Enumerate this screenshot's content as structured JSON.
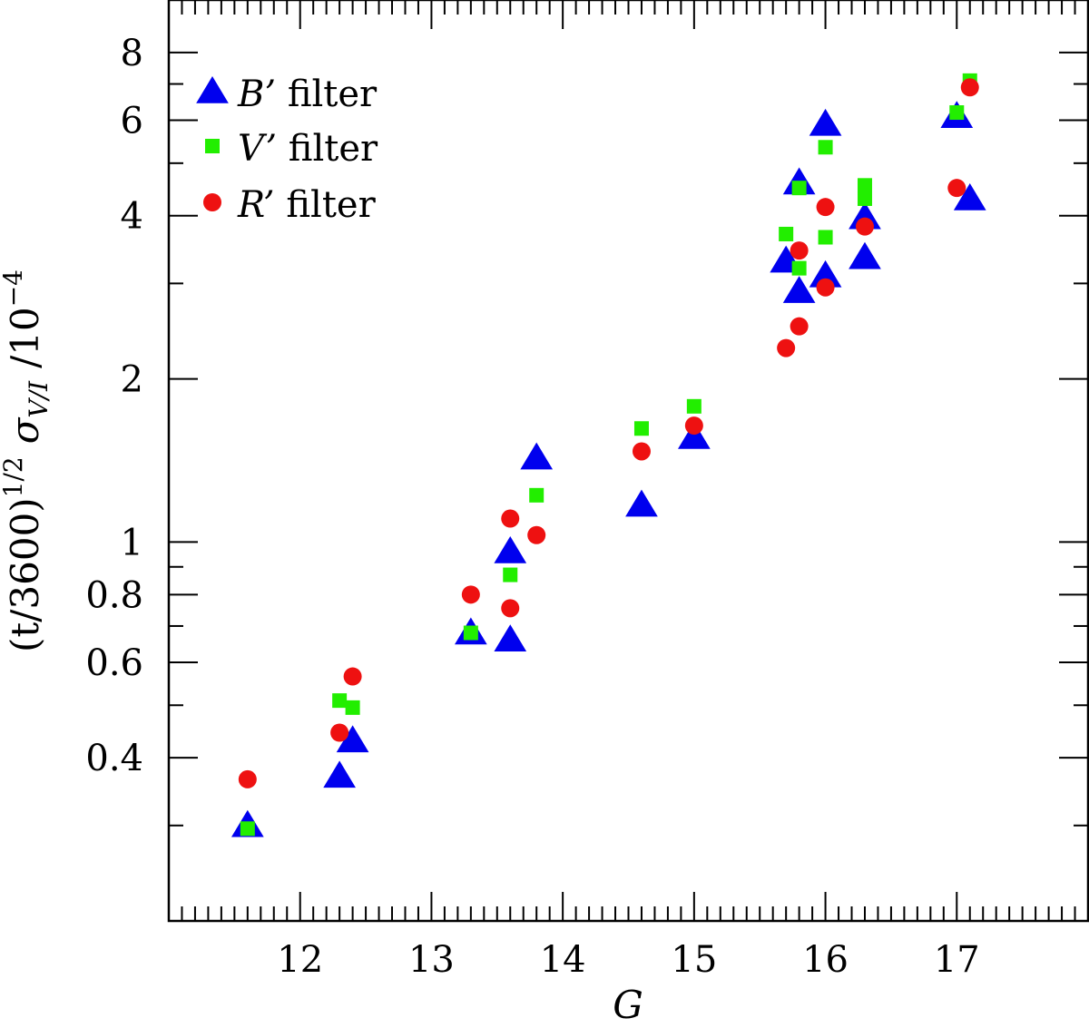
{
  "chart_data": {
    "type": "scatter",
    "xlabel": "G",
    "ylabel": {
      "prefix": "(t/3600)",
      "prefix_sup": "1/2",
      "sigma": "σ",
      "sigma_sub": "V/I",
      "suffix": "/10",
      "suffix_sup": "−4"
    },
    "xlim": [
      11.0,
      18.0
    ],
    "ylim": [
      0.2,
      10.0
    ],
    "yscale": "log",
    "x_ticks": [
      12,
      13,
      14,
      15,
      16,
      17
    ],
    "x_tick_labels": [
      "12",
      "13",
      "14",
      "15",
      "16",
      "17"
    ],
    "y_ticks": [
      0.4,
      0.6,
      0.8,
      1,
      2,
      4,
      6,
      8
    ],
    "y_tick_labels": [
      "0.4",
      "0.6",
      "0.8",
      "1",
      "2",
      "4",
      "6",
      "8"
    ],
    "legend_position": "top-left",
    "series": [
      {
        "name": "B’ filter",
        "legend_italic": "B’",
        "legend_rest": " filter",
        "marker": "triangle",
        "color": "#0000ee",
        "x": [
          11.6,
          12.3,
          12.4,
          13.3,
          13.6,
          13.6,
          13.8,
          14.6,
          15.0,
          15.7,
          15.8,
          15.8,
          16.0,
          16.0,
          16.3,
          16.3,
          17.0,
          17.1
        ],
        "y": [
          0.3,
          0.37,
          0.43,
          0.68,
          0.66,
          0.96,
          1.43,
          1.17,
          1.56,
          3.3,
          4.6,
          2.9,
          5.9,
          3.1,
          3.97,
          3.35,
          6.1,
          4.3
        ]
      },
      {
        "name": "V’ filter",
        "legend_italic": "V’",
        "legend_rest": " filter",
        "marker": "square",
        "color": "#22ee00",
        "x": [
          11.6,
          12.3,
          12.4,
          13.3,
          13.6,
          13.8,
          14.6,
          15.0,
          15.7,
          15.8,
          15.8,
          16.0,
          16.0,
          16.3,
          16.3,
          17.0,
          17.1
        ],
        "y": [
          0.296,
          0.51,
          0.495,
          0.68,
          0.87,
          1.22,
          1.62,
          1.78,
          3.7,
          4.5,
          3.2,
          5.35,
          3.65,
          4.3,
          4.55,
          6.2,
          7.1
        ]
      },
      {
        "name": "R’ filter",
        "legend_italic": "R’",
        "legend_rest": " filter",
        "marker": "circle",
        "color": "#ee1111",
        "x": [
          11.6,
          12.3,
          12.4,
          13.3,
          13.6,
          13.6,
          13.8,
          14.6,
          15.0,
          15.7,
          15.8,
          15.8,
          16.0,
          16.0,
          16.3,
          17.0,
          17.1
        ],
        "y": [
          0.365,
          0.445,
          0.565,
          0.8,
          0.755,
          1.105,
          1.03,
          1.47,
          1.64,
          2.28,
          2.5,
          3.45,
          4.15,
          2.95,
          3.82,
          4.5,
          6.9
        ]
      }
    ]
  }
}
